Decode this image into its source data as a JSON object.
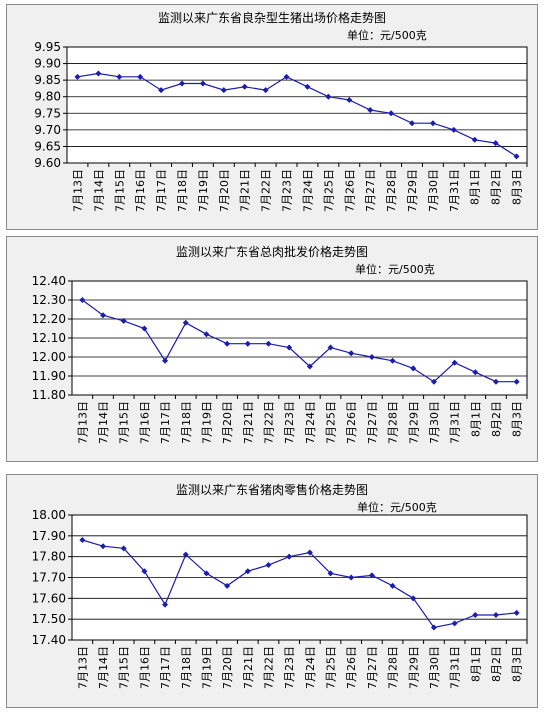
{
  "chart_data": [
    {
      "type": "line",
      "title": "监测以来广东省良杂型生猪出场价格走势图",
      "unit_label": "单位：元/500克",
      "categories": [
        "7月13日",
        "7月14日",
        "7月15日",
        "7月16日",
        "7月17日",
        "7月18日",
        "7月19日",
        "7月20日",
        "7月21日",
        "7月22日",
        "7月23日",
        "7月24日",
        "7月25日",
        "7月26日",
        "7月27日",
        "7月28日",
        "7月29日",
        "7月30日",
        "7月31日",
        "8月1日",
        "8月2日",
        "8月3日"
      ],
      "series": [
        {
          "values": [
            9.86,
            9.87,
            9.86,
            9.86,
            9.82,
            9.84,
            9.84,
            9.82,
            9.83,
            9.82,
            9.86,
            9.83,
            9.8,
            9.79,
            9.76,
            9.75,
            9.72,
            9.72,
            9.7,
            9.67,
            9.66,
            9.62
          ],
          "color": "#1c1cb0"
        }
      ],
      "ylim": [
        9.6,
        9.95
      ],
      "yticks": [
        "9.60",
        "9.65",
        "9.70",
        "9.75",
        "9.80",
        "9.85",
        "9.90",
        "9.95"
      ],
      "grid": true
    },
    {
      "type": "line",
      "title": "监测以来广东省总肉批发价格走势图",
      "unit_label": "单位：元/500克",
      "categories": [
        "7月13日",
        "7月14日",
        "7月15日",
        "7月16日",
        "7月17日",
        "7月18日",
        "7月19日",
        "7月20日",
        "7月21日",
        "7月22日",
        "7月23日",
        "7月24日",
        "7月25日",
        "7月26日",
        "7月27日",
        "7月28日",
        "7月29日",
        "7月30日",
        "7月31日",
        "8月1日",
        "8月2日",
        "8月3日"
      ],
      "series": [
        {
          "values": [
            12.3,
            12.22,
            12.19,
            12.15,
            11.98,
            12.18,
            12.12,
            12.07,
            12.07,
            12.07,
            12.05,
            11.95,
            12.05,
            12.02,
            12.0,
            11.98,
            11.94,
            11.87,
            11.97,
            11.92,
            11.87,
            11.87
          ],
          "color": "#1c1cb0"
        }
      ],
      "ylim": [
        11.8,
        12.4
      ],
      "yticks": [
        "11.80",
        "11.90",
        "12.00",
        "12.10",
        "12.20",
        "12.30",
        "12.40"
      ],
      "grid": true
    },
    {
      "type": "line",
      "title": "监测以来广东省猪肉零售价格走势图",
      "unit_label": "单位：元/500克",
      "categories": [
        "7月13日",
        "7月14日",
        "7月15日",
        "7月16日",
        "7月17日",
        "7月18日",
        "7月19日",
        "7月20日",
        "7月21日",
        "7月22日",
        "7月23日",
        "7月24日",
        "7月25日",
        "7月26日",
        "7月27日",
        "7月28日",
        "7月29日",
        "7月30日",
        "7月31日",
        "8月1日",
        "8月2日",
        "8月3日"
      ],
      "series": [
        {
          "values": [
            17.88,
            17.85,
            17.84,
            17.73,
            17.57,
            17.81,
            17.72,
            17.66,
            17.73,
            17.76,
            17.8,
            17.82,
            17.72,
            17.7,
            17.71,
            17.66,
            17.6,
            17.46,
            17.48,
            17.52,
            17.52,
            17.53
          ],
          "color": "#1c1cb0"
        }
      ],
      "ylim": [
        17.4,
        18.0
      ],
      "yticks": [
        "17.40",
        "17.50",
        "17.60",
        "17.70",
        "17.80",
        "17.90",
        "18.00"
      ],
      "grid": true
    }
  ]
}
